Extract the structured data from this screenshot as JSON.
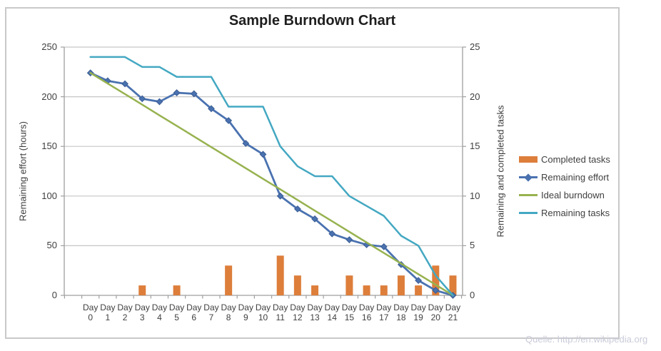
{
  "watermark": "Quelle: http://en.wikipedia.org",
  "chart_data": {
    "type": "combo",
    "title": "Sample Burndown Chart",
    "categories": [
      "Day 0",
      "Day 1",
      "Day 2",
      "Day 3",
      "Day 4",
      "Day 5",
      "Day 6",
      "Day 7",
      "Day 8",
      "Day 9",
      "Day 10",
      "Day 11",
      "Day 12",
      "Day 13",
      "Day 14",
      "Day 15",
      "Day 16",
      "Day 17",
      "Day 18",
      "Day 19",
      "Day 20",
      "Day 21"
    ],
    "grid": "horizontal",
    "y_left": {
      "title": "Remaining effort (hours)",
      "min": 0,
      "max": 250,
      "step": 50,
      "ticks": [
        250,
        200,
        150,
        100,
        50,
        0
      ]
    },
    "y_right": {
      "title": "Remaining and  completed tasks",
      "min": 0,
      "max": 25,
      "step": 5,
      "ticks": [
        25,
        20,
        15,
        10,
        5,
        0
      ]
    },
    "legend": {
      "position": "right"
    },
    "colors": {
      "completed_tasks": "#dd7e3b",
      "remaining_effort": "#4a72b0",
      "ideal_burndown": "#97b24f",
      "remaining_tasks": "#44a8c2",
      "gridline": "#c6c6c6",
      "axis_line": "#9f9f9f"
    },
    "series": [
      {
        "name": "Completed tasks",
        "type": "bar",
        "axis": "right",
        "color": "#dd7e3b",
        "values": [
          0,
          0,
          0,
          1,
          0,
          1,
          0,
          0,
          3,
          0,
          0,
          4,
          2,
          1,
          0,
          2,
          1,
          1,
          2,
          1,
          3,
          2
        ]
      },
      {
        "name": "Remaining effort",
        "type": "line",
        "axis": "left",
        "color": "#4a72b0",
        "marker": "diamond",
        "values": [
          224,
          216,
          213,
          198,
          195,
          204,
          203,
          188,
          176,
          153,
          142,
          100,
          87,
          77,
          62,
          56,
          51,
          49,
          31,
          15,
          5,
          0
        ]
      },
      {
        "name": "Ideal burndown",
        "type": "line",
        "axis": "left",
        "color": "#97b24f",
        "values": [
          224,
          213.3,
          202.7,
          192,
          181.3,
          170.7,
          160,
          149.3,
          138.7,
          128,
          117.3,
          106.7,
          96,
          85.3,
          74.7,
          64,
          53.3,
          42.7,
          32,
          21.3,
          10.7,
          0
        ]
      },
      {
        "name": "Remaining tasks",
        "type": "line",
        "axis": "right",
        "color": "#44a8c2",
        "values": [
          24,
          24,
          24,
          23,
          23,
          22,
          22,
          22,
          19,
          19,
          19,
          15,
          13,
          12,
          12,
          10,
          9,
          8,
          6,
          5,
          2,
          0
        ]
      }
    ]
  }
}
